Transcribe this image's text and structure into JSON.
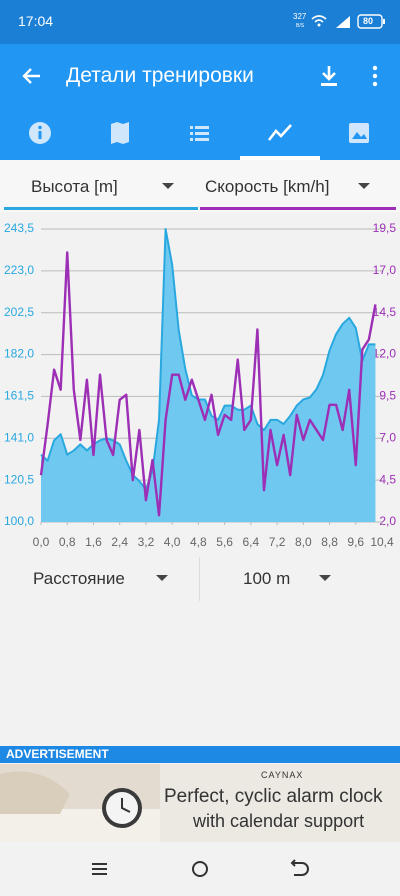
{
  "status_bar": {
    "time": "17:04",
    "net_speed": "327",
    "net_unit": "B/S",
    "battery": "80"
  },
  "app_bar": {
    "title": "Детали тренировки"
  },
  "bottom_selectors": {
    "x_axis": "Расстояние",
    "step": "100 m"
  },
  "ad": {
    "label": "ADVERTISEMENT",
    "brand": "CAYNAX",
    "line1": "Perfect, cyclic alarm clock",
    "line2": "with calendar support"
  },
  "chart_data": {
    "type": "line",
    "x": [
      0,
      0.2,
      0.4,
      0.6,
      0.8,
      1.0,
      1.2,
      1.4,
      1.6,
      1.8,
      2.0,
      2.2,
      2.4,
      2.6,
      2.8,
      3.0,
      3.2,
      3.4,
      3.6,
      3.8,
      4.0,
      4.2,
      4.4,
      4.6,
      4.8,
      5.0,
      5.2,
      5.4,
      5.6,
      5.8,
      6.0,
      6.2,
      6.4,
      6.6,
      6.8,
      7.0,
      7.2,
      7.4,
      7.6,
      7.8,
      8.0,
      8.2,
      8.4,
      8.6,
      8.8,
      9.0,
      9.2,
      9.4,
      9.6,
      9.8,
      10.0,
      10.2
    ],
    "series": [
      {
        "name": "Высота [m]",
        "color": "#29a8e0",
        "fill": "#6fc8ef",
        "area": true,
        "values": [
          133,
          130,
          140,
          143,
          133,
          135,
          138,
          135,
          138,
          140,
          141,
          140,
          138,
          130,
          123,
          120,
          116,
          125,
          150,
          243.5,
          226,
          194,
          175,
          162,
          160,
          160,
          152,
          150,
          157,
          157,
          155,
          155,
          157,
          148,
          145,
          150,
          150,
          148,
          152,
          157,
          160,
          161,
          165,
          172,
          184,
          192,
          197,
          200,
          195,
          179,
          187,
          187
        ]
      },
      {
        "name": "Скорость [km/h]",
        "color": "#9c2fb5",
        "axis": "y2",
        "values": [
          4.8,
          7.8,
          11.1,
          9.9,
          18.1,
          9.9,
          6.9,
          10.5,
          6.0,
          10.8,
          6.9,
          6.0,
          9.3,
          9.6,
          4.5,
          7.5,
          3.3,
          5.7,
          2.4,
          8.1,
          10.8,
          10.8,
          9.3,
          10.5,
          9.3,
          8.1,
          9.6,
          7.2,
          8.4,
          8.1,
          11.7,
          7.5,
          8.1,
          13.5,
          3.9,
          7.5,
          5.4,
          7.2,
          4.8,
          8.4,
          6.9,
          8.1,
          7.5,
          6.9,
          9.0,
          9.0,
          7.5,
          9.9,
          5.4,
          12.3,
          12.9,
          15.0
        ]
      }
    ],
    "xlim": [
      0,
      10.4
    ],
    "xticks": [
      {
        "value": 0,
        "label": "0,0"
      },
      {
        "value": 0.8,
        "label": "0,8"
      },
      {
        "value": 1.6,
        "label": "1,6"
      },
      {
        "value": 2.4,
        "label": "2,4"
      },
      {
        "value": 3.2,
        "label": "3,2"
      },
      {
        "value": 4.0,
        "label": "4,0"
      },
      {
        "value": 4.8,
        "label": "4,8"
      },
      {
        "value": 5.6,
        "label": "5,6"
      },
      {
        "value": 6.4,
        "label": "6,4"
      },
      {
        "value": 7.2,
        "label": "7,2"
      },
      {
        "value": 8.0,
        "label": "8,0"
      },
      {
        "value": 8.8,
        "label": "8,8"
      },
      {
        "value": 9.6,
        "label": "9,6"
      },
      {
        "value": 10.4,
        "label": "10,4"
      }
    ],
    "ylim": [
      100,
      243.5
    ],
    "yticks": [
      {
        "value": 100,
        "label": "100,0"
      },
      {
        "value": 120.5,
        "label": "120,5"
      },
      {
        "value": 141,
        "label": "141,0"
      },
      {
        "value": 161.5,
        "label": "161,5"
      },
      {
        "value": 182,
        "label": "182,0"
      },
      {
        "value": 202.5,
        "label": "202,5"
      },
      {
        "value": 223,
        "label": "223,0"
      },
      {
        "value": 243.5,
        "label": "243,5"
      }
    ],
    "y2lim": [
      2,
      19.5
    ],
    "y2ticks": [
      {
        "value": 2,
        "label": "2,0"
      },
      {
        "value": 4.5,
        "label": "4,5"
      },
      {
        "value": 7,
        "label": "7,0"
      },
      {
        "value": 9.5,
        "label": "9,5"
      },
      {
        "value": 12,
        "label": "12,0"
      },
      {
        "value": 14.5,
        "label": "14,5"
      },
      {
        "value": 17,
        "label": "17,0"
      },
      {
        "value": 19.5,
        "label": "19,5"
      }
    ],
    "grid": true
  }
}
